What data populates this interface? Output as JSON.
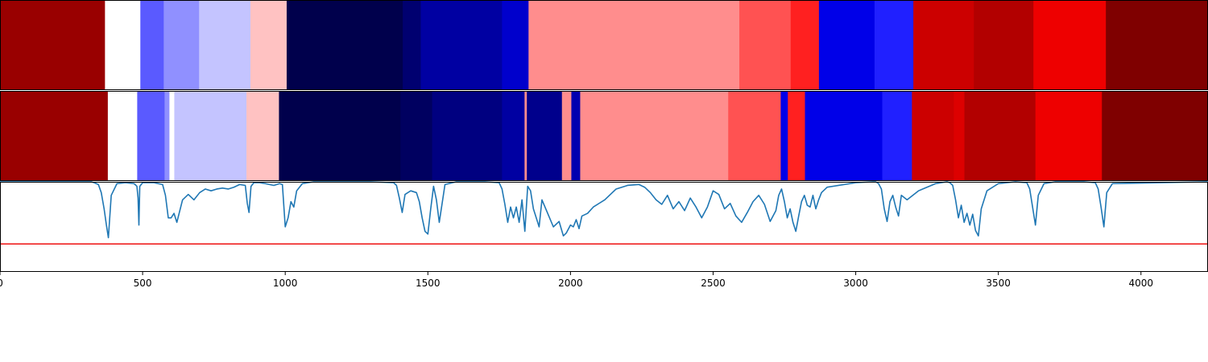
{
  "chart_data": [
    {
      "type": "heatmap",
      "row": "top",
      "segments": [
        {
          "start": 0,
          "end": 368,
          "color": "#990000"
        },
        {
          "start": 368,
          "end": 492,
          "color": "#ffffff"
        },
        {
          "start": 492,
          "end": 574,
          "color": "#5a5aff"
        },
        {
          "start": 574,
          "end": 698,
          "color": "#9090ff"
        },
        {
          "start": 698,
          "end": 878,
          "color": "#c4c4ff"
        },
        {
          "start": 878,
          "end": 1005,
          "color": "#ffc2c2"
        },
        {
          "start": 1005,
          "end": 1412,
          "color": "#00004c"
        },
        {
          "start": 1412,
          "end": 1475,
          "color": "#000070"
        },
        {
          "start": 1475,
          "end": 1760,
          "color": "#0000a2"
        },
        {
          "start": 1760,
          "end": 1853,
          "color": "#0000cc"
        },
        {
          "start": 1853,
          "end": 2592,
          "color": "#ff8d8d"
        },
        {
          "start": 2592,
          "end": 2772,
          "color": "#ff5252"
        },
        {
          "start": 2772,
          "end": 2871,
          "color": "#ff2020"
        },
        {
          "start": 2871,
          "end": 3066,
          "color": "#0000e8"
        },
        {
          "start": 3066,
          "end": 3202,
          "color": "#2020ff"
        },
        {
          "start": 3202,
          "end": 3414,
          "color": "#cc0000"
        },
        {
          "start": 3414,
          "end": 3623,
          "color": "#b20000"
        },
        {
          "start": 3623,
          "end": 3877,
          "color": "#ee0000"
        },
        {
          "start": 3877,
          "end": 4235,
          "color": "#7f0000"
        }
      ]
    },
    {
      "type": "heatmap",
      "row": "middle",
      "segments": [
        {
          "start": 0,
          "end": 378,
          "color": "#990000"
        },
        {
          "start": 378,
          "end": 481,
          "color": "#ffffff"
        },
        {
          "start": 481,
          "end": 577,
          "color": "#5a5aff"
        },
        {
          "start": 577,
          "end": 594,
          "color": "#9090ff"
        },
        {
          "start": 594,
          "end": 611,
          "color": "#ffffff"
        },
        {
          "start": 611,
          "end": 864,
          "color": "#c4c4ff"
        },
        {
          "start": 864,
          "end": 978,
          "color": "#ffc2c2"
        },
        {
          "start": 978,
          "end": 1404,
          "color": "#00004c"
        },
        {
          "start": 1404,
          "end": 1515,
          "color": "#000060"
        },
        {
          "start": 1515,
          "end": 1760,
          "color": "#000080"
        },
        {
          "start": 1760,
          "end": 1839,
          "color": "#0000a2"
        },
        {
          "start": 1839,
          "end": 1847,
          "color": "#ff8d8d"
        },
        {
          "start": 1847,
          "end": 1970,
          "color": "#00008c"
        },
        {
          "start": 1970,
          "end": 2003,
          "color": "#ff8d8d"
        },
        {
          "start": 2003,
          "end": 2034,
          "color": "#0000b0"
        },
        {
          "start": 2034,
          "end": 2553,
          "color": "#ff8d8d"
        },
        {
          "start": 2553,
          "end": 2737,
          "color": "#ff5252"
        },
        {
          "start": 2737,
          "end": 2762,
          "color": "#0000e8"
        },
        {
          "start": 2762,
          "end": 2822,
          "color": "#ff2020"
        },
        {
          "start": 2822,
          "end": 3093,
          "color": "#0000e8"
        },
        {
          "start": 3093,
          "end": 3197,
          "color": "#2020ff"
        },
        {
          "start": 3197,
          "end": 3344,
          "color": "#cc0000"
        },
        {
          "start": 3344,
          "end": 3381,
          "color": "#dd0000"
        },
        {
          "start": 3381,
          "end": 3630,
          "color": "#b20000"
        },
        {
          "start": 3630,
          "end": 3863,
          "color": "#ee0000"
        },
        {
          "start": 3863,
          "end": 4235,
          "color": "#7f0000"
        }
      ]
    },
    {
      "type": "line",
      "row": "bottom",
      "xlim": [
        0,
        4235
      ],
      "ylim": [
        0,
        1
      ],
      "xticks": [
        0,
        500,
        1000,
        1500,
        2000,
        2500,
        3000,
        3500,
        4000
      ],
      "xtick_labels": [
        "0",
        "500",
        "1000",
        "1500",
        "2000",
        "2500",
        "3000",
        "3500",
        "4000"
      ],
      "threshold": {
        "value": 0.31,
        "color": "#ee1111"
      },
      "series": [
        {
          "color": "#1f77b4",
          "x": [
            0,
            320,
            330,
            345,
            355,
            365,
            373,
            380,
            390,
            410,
            440,
            470,
            480,
            484,
            487,
            490,
            500,
            540,
            570,
            580,
            590,
            600,
            610,
            620,
            640,
            660,
            680,
            700,
            720,
            740,
            760,
            780,
            800,
            820,
            840,
            860,
            867,
            873,
            880,
            890,
            910,
            930,
            960,
            980,
            990,
            1000,
            1010,
            1020,
            1030,
            1040,
            1060,
            1100,
            1200,
            1300,
            1380,
            1390,
            1400,
            1410,
            1420,
            1440,
            1460,
            1470,
            1480,
            1490,
            1500,
            1510,
            1520,
            1530,
            1540,
            1560,
            1600,
            1700,
            1750,
            1760,
            1770,
            1780,
            1790,
            1800,
            1810,
            1820,
            1830,
            1840,
            1850,
            1860,
            1870,
            1880,
            1890,
            1900,
            1920,
            1940,
            1960,
            1975,
            1985,
            2000,
            2010,
            2020,
            2030,
            2040,
            2060,
            2080,
            2100,
            2120,
            2140,
            2160,
            2200,
            2240,
            2260,
            2280,
            2300,
            2320,
            2340,
            2360,
            2380,
            2400,
            2420,
            2440,
            2460,
            2480,
            2500,
            2520,
            2540,
            2560,
            2580,
            2600,
            2620,
            2640,
            2660,
            2680,
            2700,
            2720,
            2730,
            2740,
            2750,
            2760,
            2770,
            2780,
            2790,
            2800,
            2810,
            2820,
            2830,
            2840,
            2850,
            2860,
            2870,
            2880,
            2900,
            3000,
            3060,
            3070,
            3080,
            3090,
            3100,
            3110,
            3120,
            3130,
            3140,
            3150,
            3160,
            3180,
            3220,
            3280,
            3320,
            3330,
            3340,
            3350,
            3360,
            3370,
            3380,
            3390,
            3400,
            3410,
            3420,
            3430,
            3440,
            3460,
            3500,
            3560,
            3600,
            3610,
            3620,
            3630,
            3640,
            3660,
            3700,
            3800,
            3840,
            3850,
            3860,
            3870,
            3880,
            3900,
            4235
          ],
          "y": [
            1.0,
            1.0,
            0.99,
            0.97,
            0.88,
            0.7,
            0.52,
            0.38,
            0.85,
            0.98,
            0.99,
            0.98,
            0.95,
            0.82,
            0.52,
            0.95,
            0.99,
            0.99,
            0.97,
            0.85,
            0.6,
            0.6,
            0.65,
            0.55,
            0.8,
            0.86,
            0.8,
            0.88,
            0.92,
            0.9,
            0.92,
            0.93,
            0.92,
            0.94,
            0.97,
            0.96,
            0.76,
            0.66,
            0.95,
            0.99,
            0.99,
            0.98,
            0.96,
            0.98,
            0.97,
            0.5,
            0.6,
            0.78,
            0.72,
            0.9,
            0.98,
            1.0,
            1.0,
            1.0,
            0.99,
            0.96,
            0.82,
            0.66,
            0.86,
            0.9,
            0.88,
            0.78,
            0.6,
            0.45,
            0.42,
            0.7,
            0.95,
            0.8,
            0.55,
            0.97,
            1.0,
            1.0,
            0.99,
            0.92,
            0.75,
            0.55,
            0.72,
            0.6,
            0.72,
            0.55,
            0.8,
            0.45,
            0.95,
            0.9,
            0.7,
            0.6,
            0.5,
            0.8,
            0.65,
            0.5,
            0.56,
            0.4,
            0.43,
            0.52,
            0.5,
            0.58,
            0.48,
            0.62,
            0.65,
            0.72,
            0.76,
            0.8,
            0.86,
            0.92,
            0.96,
            0.97,
            0.94,
            0.88,
            0.8,
            0.75,
            0.85,
            0.7,
            0.78,
            0.68,
            0.82,
            0.72,
            0.6,
            0.72,
            0.9,
            0.86,
            0.7,
            0.76,
            0.62,
            0.55,
            0.66,
            0.78,
            0.85,
            0.75,
            0.56,
            0.68,
            0.85,
            0.92,
            0.78,
            0.6,
            0.7,
            0.55,
            0.45,
            0.62,
            0.78,
            0.85,
            0.74,
            0.72,
            0.85,
            0.7,
            0.8,
            0.88,
            0.94,
            0.99,
            1.0,
            1.0,
            0.98,
            0.92,
            0.7,
            0.56,
            0.78,
            0.85,
            0.72,
            0.62,
            0.85,
            0.8,
            0.9,
            0.98,
            1.0,
            0.99,
            0.96,
            0.8,
            0.6,
            0.74,
            0.55,
            0.65,
            0.52,
            0.64,
            0.46,
            0.4,
            0.7,
            0.9,
            0.98,
            1.0,
            0.99,
            0.92,
            0.72,
            0.52,
            0.85,
            0.98,
            1.0,
            1.0,
            0.99,
            0.92,
            0.72,
            0.5,
            0.88,
            0.98,
            1.0
          ]
        }
      ]
    }
  ]
}
